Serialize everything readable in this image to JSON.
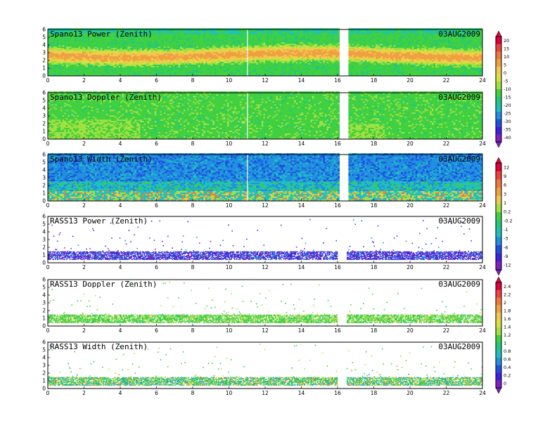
{
  "chart_data": [
    {
      "type": "heatmap",
      "title": "Spano13 Power (Zenith)",
      "date": "03AUG2009",
      "field": "power",
      "style": "dense",
      "x_ticks": [
        "0",
        "2",
        "4",
        "6",
        "8",
        "10",
        "12",
        "14",
        "16",
        "18",
        "20",
        "22",
        "24"
      ],
      "y_ticks": [
        "0",
        "1",
        "2",
        "3",
        "4",
        "5",
        "6"
      ],
      "xlim": [
        0,
        24
      ],
      "ylim": [
        0,
        6
      ],
      "data_gap_hours": [
        16.0,
        16.5
      ]
    },
    {
      "type": "heatmap",
      "title": "Spano13 Doppler (Zenith)",
      "date": "03AUG2009",
      "field": "doppler",
      "style": "dense",
      "x_ticks": [
        "0",
        "2",
        "4",
        "6",
        "8",
        "10",
        "12",
        "14",
        "16",
        "18",
        "20",
        "22",
        "24"
      ],
      "y_ticks": [
        "0",
        "1",
        "2",
        "3",
        "4",
        "5",
        "6"
      ],
      "xlim": [
        0,
        24
      ],
      "ylim": [
        0,
        6
      ],
      "data_gap_hours": [
        16.0,
        16.5
      ]
    },
    {
      "type": "heatmap",
      "title": "Spano13 Width (Zenith)",
      "date": "03AUG2009",
      "field": "width",
      "style": "dense",
      "x_ticks": [
        "0",
        "2",
        "4",
        "6",
        "8",
        "10",
        "12",
        "14",
        "16",
        "18",
        "20",
        "22",
        "24"
      ],
      "y_ticks": [
        "0",
        "1",
        "2",
        "3",
        "4",
        "5",
        "6"
      ],
      "xlim": [
        0,
        24
      ],
      "ylim": [
        0,
        6
      ],
      "data_gap_hours": [
        16.0,
        16.5
      ]
    },
    {
      "type": "heatmap",
      "title": "RASS13 Power (Zenith)",
      "date": "03AUG2009",
      "field": "rass_power",
      "style": "sparse",
      "x_ticks": [
        "0",
        "2",
        "4",
        "6",
        "8",
        "10",
        "12",
        "14",
        "16",
        "18",
        "20",
        "22",
        "24"
      ],
      "y_ticks": [
        "0",
        "1",
        "2",
        "3",
        "4",
        "5",
        "6"
      ],
      "xlim": [
        0,
        24
      ],
      "ylim": [
        0,
        6
      ],
      "data_gap_hours": [
        16.0,
        16.5
      ]
    },
    {
      "type": "heatmap",
      "title": "RASS13 Doppler (Zenith)",
      "date": "03AUG2009",
      "field": "rass_doppler",
      "style": "sparse",
      "x_ticks": [
        "0",
        "2",
        "4",
        "6",
        "8",
        "10",
        "12",
        "14",
        "16",
        "18",
        "20",
        "22",
        "24"
      ],
      "y_ticks": [
        "0",
        "1",
        "2",
        "3",
        "4",
        "5",
        "6"
      ],
      "xlim": [
        0,
        24
      ],
      "ylim": [
        0,
        6
      ],
      "data_gap_hours": [
        16.0,
        16.5
      ]
    },
    {
      "type": "heatmap",
      "title": "RASS13 Width (Zenith)",
      "date": "03AUG2009",
      "field": "rass_width",
      "style": "sparse",
      "x_ticks": [
        "0",
        "2",
        "4",
        "6",
        "8",
        "10",
        "12",
        "14",
        "16",
        "18",
        "20",
        "22",
        "24"
      ],
      "y_ticks": [
        "0",
        "1",
        "2",
        "3",
        "4",
        "5",
        "6"
      ],
      "xlim": [
        0,
        24
      ],
      "ylim": [
        0,
        6
      ],
      "data_gap_hours": [
        16.0,
        16.5
      ]
    }
  ],
  "colorbars": [
    {
      "name": "power-doppler-scale",
      "labels": [
        "20",
        "15",
        "10",
        "5",
        "0",
        "-5",
        "-10",
        "-15",
        "-20",
        "-25",
        "-30",
        "-35",
        "-40"
      ],
      "colors": [
        "#e0003c",
        "#f04040",
        "#f07840",
        "#f0a040",
        "#f0c850",
        "#d8e040",
        "#a0e040",
        "#40d040",
        "#20c880",
        "#20c0c0",
        "#2090e0",
        "#2050e0",
        "#4020e0",
        "#8020c0"
      ]
    },
    {
      "name": "width-rass-power-scale",
      "labels": [
        "12",
        "9",
        "6",
        "3",
        "1",
        "0.2",
        "-0.2",
        "-1",
        "-3",
        "-6",
        "-9",
        "-12"
      ],
      "colors": [
        "#e0003c",
        "#f04040",
        "#f07840",
        "#f0a040",
        "#f0c850",
        "#a0e040",
        "#40d040",
        "#20c880",
        "#20c0c0",
        "#2090e0",
        "#2050e0",
        "#4020e0",
        "#8020c0"
      ]
    },
    {
      "name": "rass-doppler-width-scale",
      "labels": [
        "2.4",
        "2.2",
        "2",
        "1.8",
        "1.6",
        "1.4",
        "1.2",
        "1",
        "0.8",
        "0.6",
        "0.4",
        "0.2",
        "0"
      ],
      "colors": [
        "#e0003c",
        "#f04040",
        "#f07840",
        "#f0a040",
        "#f0c850",
        "#d8e040",
        "#a0e040",
        "#40d040",
        "#20c880",
        "#20c0c0",
        "#2090e0",
        "#2050e0",
        "#4020e0",
        "#8020c0"
      ]
    }
  ]
}
